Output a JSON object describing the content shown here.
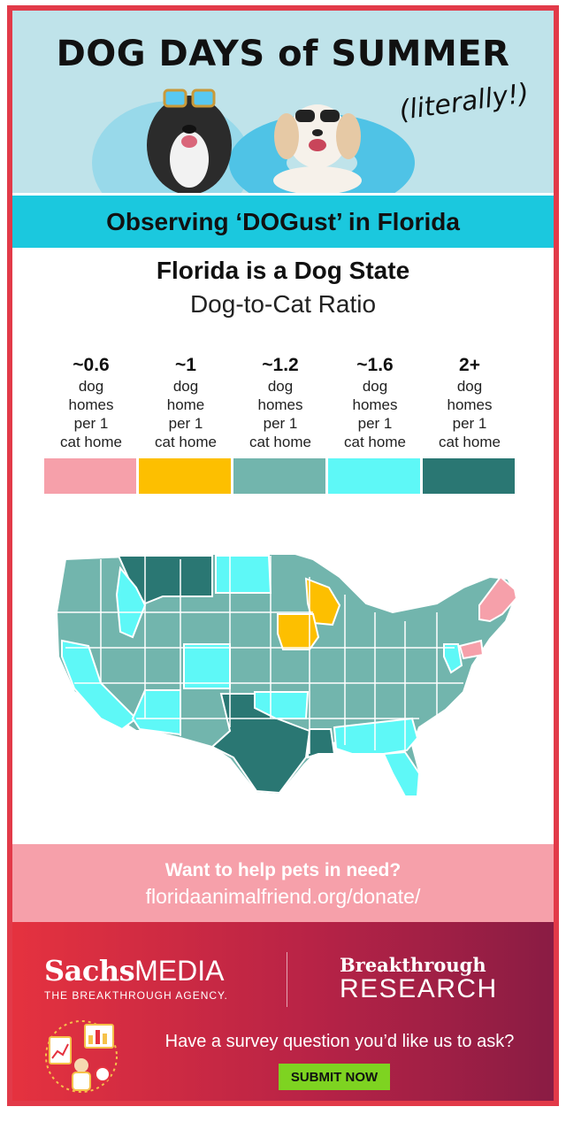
{
  "hero": {
    "title": "DOG DAYS of SUMMER",
    "subtitle": "(literally!)"
  },
  "banner": {
    "text": "Observing ‘DOGust’ in Florida"
  },
  "section": {
    "title": "Florida is a Dog State",
    "subtitle": "Dog-to-Cat Ratio"
  },
  "legend": [
    {
      "value": "~0.6",
      "lines": [
        "dog",
        "homes",
        "per 1",
        "cat home"
      ],
      "color": "#f6a0aa"
    },
    {
      "value": "~1",
      "lines": [
        "dog",
        "home",
        "per 1",
        "cat home"
      ],
      "color": "#fdbf00"
    },
    {
      "value": "~1.2",
      "lines": [
        "dog",
        "homes",
        "per 1",
        "cat home"
      ],
      "color": "#72b5ad"
    },
    {
      "value": "~1.6",
      "lines": [
        "dog",
        "homes",
        "per 1",
        "cat home"
      ],
      "color": "#5ef8f7"
    },
    {
      "value": "2+",
      "lines": [
        "dog",
        "homes",
        "per 1",
        "cat home"
      ],
      "color": "#2a7773"
    }
  ],
  "donate": {
    "title": "Want to help pets in need?",
    "url": "floridaanimalfriend.org/donate/"
  },
  "footer": {
    "sachs_name": "Sachs",
    "sachs_media": "MEDIA",
    "sachs_tagline": "THE BREAKTHROUGH AGENCY.",
    "br_top": "Breakthrough",
    "br_bottom": "RESEARCH",
    "survey_question": "Have a survey question you’d like us to ask?",
    "submit_label": "SUBMIT NOW"
  },
  "colors": {
    "frame": "#e23a49",
    "hero_bg": "#bfe3ea",
    "banner": "#1bc8de",
    "donate_bg": "#f6a0aa",
    "submit": "#7ed321"
  }
}
